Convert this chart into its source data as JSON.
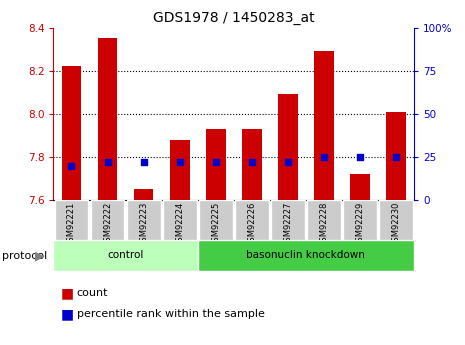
{
  "title": "GDS1978 / 1450283_at",
  "samples": [
    "GSM92221",
    "GSM92222",
    "GSM92223",
    "GSM92224",
    "GSM92225",
    "GSM92226",
    "GSM92227",
    "GSM92228",
    "GSM92229",
    "GSM92230"
  ],
  "counts": [
    8.22,
    8.35,
    7.65,
    7.88,
    7.93,
    7.93,
    8.09,
    8.29,
    7.72,
    8.01
  ],
  "percentiles": [
    20,
    22,
    22,
    22,
    22,
    22,
    22,
    25,
    25,
    25
  ],
  "ylim_left": [
    7.6,
    8.4
  ],
  "ylim_right": [
    0,
    100
  ],
  "yticks_left": [
    7.6,
    7.8,
    8.0,
    8.2,
    8.4
  ],
  "yticks_right": [
    0,
    25,
    50,
    75,
    100
  ],
  "ytick_labels_right": [
    "0",
    "25",
    "50",
    "75",
    "100%"
  ],
  "groups": [
    {
      "label": "control",
      "start": 0,
      "end": 4,
      "color": "#bbffbb"
    },
    {
      "label": "basonuclin knockdown",
      "start": 4,
      "end": 10,
      "color": "#44cc44"
    }
  ],
  "bar_color": "#cc0000",
  "dot_color": "#0000cc",
  "bar_width": 0.55,
  "tick_label_color_left": "#cc0000",
  "tick_label_color_right": "#0000cc",
  "legend_count_label": "count",
  "legend_pct_label": "percentile rank within the sample",
  "protocol_label": "protocol",
  "xtick_bg_color": "#cccccc",
  "grid_dotted_vals": [
    7.8,
    8.0,
    8.2
  ]
}
